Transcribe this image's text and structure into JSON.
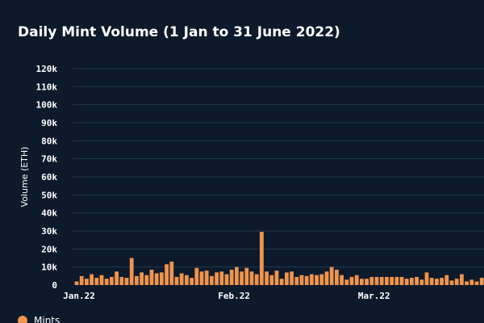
{
  "chart_data": {
    "type": "bar",
    "title": "Daily Mint Volume (1 Jan to 31 June 2022)",
    "ylabel": "Volume (ETH)",
    "xlabel": "",
    "ylim": [
      0,
      120000
    ],
    "y_ticks": [
      "0",
      "10k",
      "20k",
      "30k",
      "40k",
      "50k",
      "60k",
      "70k",
      "80k",
      "90k",
      "100k",
      "110k",
      "120k"
    ],
    "x_ticks": [
      {
        "label": "Jan.22",
        "day": 0
      },
      {
        "label": "Feb.22",
        "day": 31
      },
      {
        "label": "Mar.22",
        "day": 59
      }
    ],
    "grid": true,
    "legend_position": "bottom-left",
    "series": [
      {
        "name": "Mints",
        "color": "#f0944d",
        "values": [
          2000,
          5000,
          3500,
          6000,
          4000,
          5500,
          3500,
          4500,
          7500,
          4500,
          4000,
          15000,
          5000,
          7000,
          5500,
          8500,
          6500,
          7000,
          11500,
          13000,
          4500,
          6500,
          5500,
          4000,
          9500,
          7500,
          8000,
          5000,
          7000,
          7500,
          6000,
          8500,
          10000,
          7500,
          9500,
          7500,
          6000,
          29500,
          7500,
          5500,
          8000,
          3500,
          7000,
          7500,
          4500,
          5500,
          5000,
          6000,
          5500,
          6000,
          7500,
          10000,
          8500,
          5500,
          3000,
          4500,
          5500,
          3500,
          3500,
          4500,
          4500,
          4500,
          4500,
          4500,
          4500,
          4500,
          3500,
          4000,
          4500,
          3000,
          7000,
          4000,
          3500,
          4000,
          5500,
          2500,
          3500,
          6000,
          2000,
          3000,
          2000,
          4000
        ]
      }
    ]
  }
}
